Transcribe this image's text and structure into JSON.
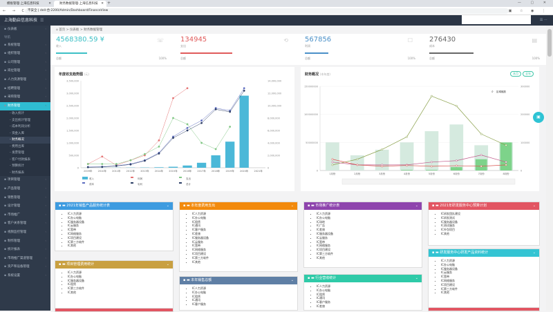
{
  "browser": {
    "tabs": [
      {
        "label": "模板管理-上海信息科技",
        "active": false
      },
      {
        "label": "财务数据管理-上海信息科技",
        "active": true
      }
    ],
    "new_tab": "+",
    "url": "不安全 | dell-合:2200/Admin/Dashboard/FinanceView",
    "nav": "← → C",
    "ext": "▣ ☆ ◉ ⋮",
    "winctl": "— ▢ ✕"
  },
  "header": {
    "logo": "上海勤启信息科技",
    "toggle": "☰",
    "right": "☰ ⋯"
  },
  "sidebar": {
    "items": [
      {
        "label": "仪表板",
        "type": "item",
        "icon": "dashboard-icon"
      },
      {
        "label": "导航",
        "type": "grp"
      },
      {
        "label": "系统管理",
        "type": "item",
        "icon": "settings-icon"
      },
      {
        "label": "组织管理",
        "type": "item",
        "icon": "org-icon"
      },
      {
        "label": "公司管理",
        "type": "item",
        "icon": "company-icon"
      },
      {
        "label": "岗位管理",
        "type": "item",
        "icon": "post-icon"
      },
      {
        "label": "人力资源管理",
        "type": "item",
        "icon": "hr-icon"
      },
      {
        "label": "招聘管理",
        "type": "item",
        "icon": "recruit-icon"
      },
      {
        "label": "采购管理",
        "type": "item",
        "icon": "purchase-icon"
      },
      {
        "label": "财务管理",
        "type": "item",
        "icon": "finance-icon",
        "active": true
      },
      {
        "label": "收入统计",
        "type": "sub"
      },
      {
        "label": "支出统计管理",
        "type": "sub"
      },
      {
        "label": "成本利润分析",
        "type": "sub"
      },
      {
        "label": "资金入库",
        "type": "sub"
      },
      {
        "label": "财务概况",
        "type": "sub",
        "selected": true
      },
      {
        "label": "费用出库",
        "type": "sub"
      },
      {
        "label": "发票管理",
        "type": "sub"
      },
      {
        "label": "客户付款报表",
        "type": "sub"
      },
      {
        "label": "预算统计",
        "type": "sub"
      },
      {
        "label": "财务报表",
        "type": "sub"
      },
      {
        "label": "项目管理",
        "type": "item",
        "icon": "project-icon"
      },
      {
        "label": "产品管理",
        "type": "item",
        "icon": "product-icon"
      },
      {
        "label": "销售管理",
        "type": "item",
        "icon": "sales-icon"
      },
      {
        "label": "设计管理",
        "type": "item",
        "icon": "design-icon"
      },
      {
        "label": "市场推广",
        "type": "item",
        "icon": "market-icon"
      },
      {
        "label": "客户关系管理",
        "type": "item",
        "icon": "crm-icon"
      },
      {
        "label": "视频监控管理",
        "type": "item",
        "icon": "video-icon"
      },
      {
        "label": "制作管理",
        "type": "item",
        "icon": "make-icon"
      },
      {
        "label": "统计报表",
        "type": "item",
        "icon": "report-icon"
      },
      {
        "label": "市场推广渠道管理",
        "type": "item",
        "icon": "channel-icon"
      },
      {
        "label": "资产和设备管理",
        "type": "item",
        "icon": "asset-icon"
      },
      {
        "label": "系统设置",
        "type": "item",
        "icon": "gear-icon"
      }
    ]
  },
  "breadcrumb": [
    "首页",
    "仪表板",
    "财务数据管理"
  ],
  "cards": [
    {
      "value": "4568380.59 ¥",
      "label": "收入",
      "foot": "总额",
      "foot2": "100%",
      "color": "#3cc0c6",
      "fill": 0.6
    },
    {
      "value": "134945",
      "label": "支出",
      "foot": "总额",
      "foot2": "",
      "color": "#e05a5a",
      "fill": 1.0
    },
    {
      "value": "567856",
      "label": "利润",
      "foot": "总额",
      "foot2": "100%",
      "color": "#4a90c8",
      "fill": 0.45
    },
    {
      "value": "276430",
      "label": "成本",
      "foot": "总额",
      "foot2": "100%",
      "color": "#666",
      "fill": 0.85
    }
  ],
  "chart_left": {
    "title": "年度收支趋势图",
    "subtitle": "(元)",
    "buttons": [
      "收入",
      "支出"
    ]
  },
  "chart_right": {
    "title": "财务概况",
    "subtitle": "(本年度)",
    "buttons": [
      "本月",
      "全年"
    ],
    "zoom_label": "区域缩放"
  },
  "chart_data": [
    {
      "type": "bar",
      "categories": [
        "2009年",
        "2010年",
        "2011年",
        "2012年",
        "2013年",
        "2014年",
        "2015年",
        "2016年",
        "2017年",
        "2018年",
        "2019年",
        "2020年",
        "2021年"
      ],
      "ylim": [
        0,
        3500000
      ],
      "ylim_right": [
        0,
        14000000
      ],
      "yticks": [
        "0",
        "500,000",
        "1,000,000",
        "1,500,000",
        "2,000,000",
        "2,500,000",
        "3,000,000",
        "3,500,000"
      ],
      "yticks_right": [
        "0",
        "2,000,000",
        "4,000,000",
        "6,000,000",
        "8,000,000",
        "10,000,000",
        "12,000,000",
        "14,000,000"
      ],
      "legend": [
        "收入",
        "利润",
        "支出",
        "成本",
        "毛利",
        "总计"
      ],
      "series": [
        {
          "name": "收入",
          "kind": "bar",
          "color": "#4bb8d8",
          "values": [
            2000,
            4000,
            6000,
            8000,
            10000,
            20000,
            40000,
            90000,
            200000,
            500000,
            1050000,
            2900000,
            null
          ]
        },
        {
          "name": "支出",
          "kind": "line",
          "color": "#e57373",
          "values": [
            150000,
            450000,
            100000,
            300000,
            500000,
            1100000,
            2800000,
            3200000,
            null,
            null,
            null,
            null,
            null
          ]
        },
        {
          "name": "利润",
          "kind": "line",
          "color": "#81c784",
          "values": [
            150000,
            150000,
            150000,
            300000,
            550000,
            850000,
            2000000,
            1750000,
            1000000,
            750000,
            1650000,
            null,
            null
          ]
        },
        {
          "name": "成本",
          "kind": "line",
          "color": "#5c6bc0",
          "values": [
            30000,
            40000,
            80000,
            150000,
            300000,
            600000,
            1250000,
            1600000,
            1900000,
            2400000,
            2300000,
            3200000,
            null
          ]
        },
        {
          "name": "总计",
          "kind": "line",
          "color": "#2c3e66",
          "values": [
            20000,
            30000,
            70000,
            130000,
            280000,
            570000,
            1200000,
            1500000,
            1800000,
            2350000,
            2250000,
            3100000,
            null
          ]
        }
      ]
    },
    {
      "type": "bar",
      "categories": [
        "1月份",
        "2月份",
        "3月份",
        "4月份",
        "5月份",
        "6月份",
        "7月份",
        "8月份"
      ],
      "ylim": [
        0,
        150000000
      ],
      "ylim_right": [
        0,
        300000
      ],
      "yticks": [
        "0",
        "50000000",
        "100000000",
        "150000000"
      ],
      "yticks_right": [
        "0",
        "100000",
        "200000",
        "300000"
      ],
      "series": [
        {
          "name": "收入",
          "kind": "bar",
          "color": "#d5eadf",
          "values": [
            50000000,
            27000000,
            37000000,
            50000000,
            70000000,
            82000000,
            45000000,
            50000000
          ]
        },
        {
          "name": "利润",
          "kind": "bar",
          "color": "#7dd38a",
          "values": [
            0,
            0,
            0,
            1000000,
            1000000,
            6000000,
            20000000,
            50000000
          ]
        },
        {
          "name": "支出",
          "kind": "line",
          "color": "#8aa04a",
          "values": [
            20000,
            40000,
            75000,
            120000,
            265000,
            230000,
            130000,
            90000
          ]
        },
        {
          "name": "成本",
          "kind": "line",
          "color": "#c05a8a",
          "values": [
            30000,
            20000,
            20000,
            20000,
            30000,
            35000,
            55000,
            30000
          ]
        },
        {
          "name": "费用",
          "kind": "line",
          "color": "#d9534f",
          "values": [
            40000,
            20000,
            15000,
            18000,
            15000,
            17000,
            15000,
            20000
          ]
        }
      ]
    }
  ],
  "panels": [
    {
      "title": "2021年销售产品服务统计表",
      "color": "#3d9be0",
      "items": [
        "IC人力资源",
        "IC办公电脑",
        "IC服务器设备",
        "IC云服务",
        "IC宽带",
        "IC网络服务",
        "IC项目建设",
        "IC第三方软件",
        "IC其他"
      ]
    },
    {
      "title": "本年度费用支出",
      "color": "#f28a0c",
      "items": [
        "IC人力资源",
        "IC办公电脑",
        "IC租赁",
        "IC通讯",
        "IC客户服务",
        "IC差旅",
        "IC服务器设备",
        "IC云服务",
        "IC宽带",
        "IC网络服务",
        "IC项目建设",
        "IC第三方软件",
        "IC其他"
      ]
    },
    {
      "title": "市场推广统计表",
      "color": "#8e44ad",
      "items": [
        "IC人力资源",
        "IC办公电脑",
        "IC场地",
        "IC广告",
        "IC差旅",
        "IC服务器设备",
        "IC云服务",
        "IC宽带",
        "IC网络服务",
        "IC项目建设",
        "IC第三方软件",
        "IC其他"
      ]
    },
    {
      "title": "2021年研发服务中心预算计划",
      "color": "#e25562",
      "items": [
        "IC研发团队建设",
        "IC研发测试",
        "IC服务器设备",
        "IC测试服务",
        "IC外包项目",
        "IC其他"
      ]
    },
    {
      "title": "项目管理费用统计",
      "color": "#c9a040",
      "items": [
        "IC人力资源",
        "IC办公电脑",
        "IC服务器设备",
        "IC租赁",
        "IC第三方软件",
        "IC其他"
      ]
    },
    {
      "title": "本年销售总额",
      "color": "#5f7fa5",
      "items": [
        "IC人力资源",
        "IC办公电脑",
        "IC租赁",
        "IC通讯",
        "IC客户服务"
      ]
    },
    {
      "title": "行业营收统计",
      "color": "#2fcaa8",
      "items": [
        "IC人力资源",
        "IC办公电脑",
        "IC租赁",
        "IC通讯",
        "IC客户服务",
        "IC差旅"
      ]
    },
    {
      "title": "研发服务中心研发产品资料统计",
      "color": "#34c4d3",
      "items": [
        "IC人力资源",
        "IC办公电脑",
        "IC服务器设备",
        "IC云服务",
        "IC宽带",
        "IC网络服务",
        "IC项目建设",
        "IC第三方软件",
        "IC其他"
      ]
    }
  ],
  "fab": "▣"
}
